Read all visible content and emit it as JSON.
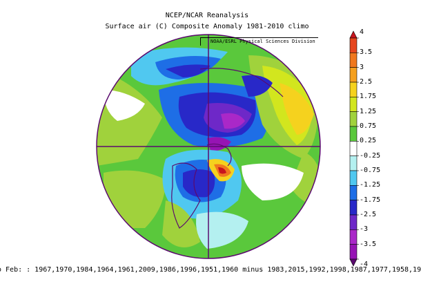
{
  "header": {
    "title": "NCEP/NCAR Reanalysis",
    "subtitle": "Surface air (C) Composite Anomaly 1981-2010 climo",
    "credit": "NOAA/ESRL Physical Sciences Division"
  },
  "footer": {
    "text": "o Feb: : 1967,1970,1984,1964,1961,2009,1986,1996,1951,1960 minus 1983,2015,1992,1998,1987,1977,1958,19"
  },
  "chart_data": {
    "type": "heatmap",
    "title": "NCEP/NCAR Reanalysis",
    "subtitle": "Surface air (C) Composite Anomaly 1981-2010 climo",
    "projection": "polar stereographic",
    "colorbar": {
      "levels": [
        "4",
        "3.5",
        "3",
        "2.5",
        "1.75",
        "1.25",
        "0.75",
        "0.25",
        "-0.25",
        "-0.75",
        "-1.25",
        "-1.75",
        "-2.5",
        "-3",
        "-3.5",
        "-4"
      ],
      "colors": [
        "#c8141e",
        "#e6461e",
        "#f0781e",
        "#f5a01e",
        "#f5d21e",
        "#d2e61e",
        "#a0d23c",
        "#5ac83c",
        "#ffffff",
        "#b4f0f0",
        "#50c8f0",
        "#1e6ee6",
        "#2828c8",
        "#6e28c8",
        "#aa28c8",
        "#9614b4",
        "#5a0a6e"
      ]
    }
  }
}
